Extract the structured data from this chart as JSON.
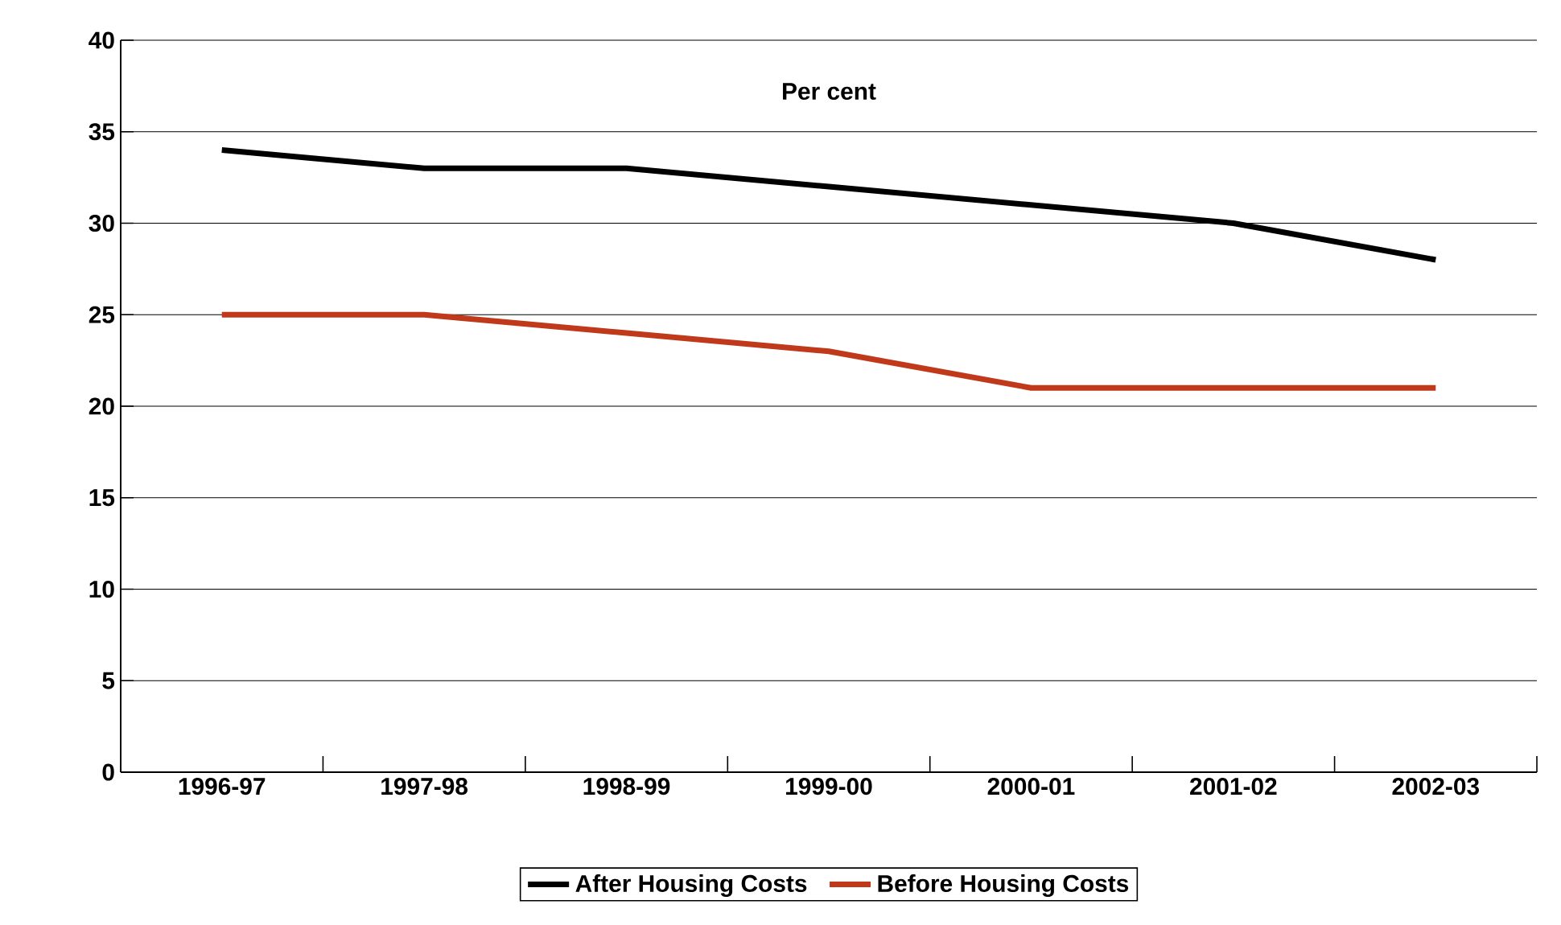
{
  "chart_data": {
    "type": "line",
    "ylabel": "Per cent",
    "categories": [
      "1996-97",
      "1997-98",
      "1998-99",
      "1999-00",
      "2000-01",
      "2001-02",
      "2002-03"
    ],
    "series": [
      {
        "name": "After Housing Costs",
        "color": "#000000",
        "values": [
          34,
          33,
          33,
          32,
          31,
          30,
          28
        ]
      },
      {
        "name": "Before Housing Costs",
        "color": "#c0391b",
        "values": [
          25,
          25,
          24,
          23,
          21,
          21,
          21
        ]
      }
    ],
    "ylim": [
      0,
      40
    ],
    "yticks": [
      0,
      5,
      10,
      15,
      20,
      25,
      30,
      35,
      40
    ],
    "grid": "y",
    "legend": "bottom",
    "marker": "none",
    "line_style": "solid"
  }
}
